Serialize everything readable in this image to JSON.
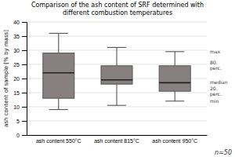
{
  "chart_data": {
    "type": "box",
    "title": "Comparison of the ash content of SRF determined with\ndifferent combustion temperatures",
    "ylabel": "ash content of sample [% by mass]",
    "categories": [
      "ash content 550°C",
      "ash content 815°C",
      "ash content 950°C"
    ],
    "boxes": [
      {
        "min": 9.0,
        "q1": 13.0,
        "median": 22.0,
        "q3": 29.0,
        "max": 36.0
      },
      {
        "min": 10.5,
        "q1": 18.0,
        "median": 19.5,
        "q3": 24.5,
        "max": 31.0
      },
      {
        "min": 12.0,
        "q1": 15.5,
        "median": 18.5,
        "q3": 24.5,
        "max": 29.5
      }
    ],
    "color": "#888080",
    "ylim": [
      0,
      40
    ],
    "yticks": [
      0,
      5,
      10,
      15,
      20,
      25,
      30,
      35,
      40
    ],
    "grid": true,
    "annotations": [
      {
        "text": "max",
        "y": 29.5
      },
      {
        "text": "80.\nperc.",
        "y": 24.5
      },
      {
        "text": "median",
        "y": 18.5
      },
      {
        "text": "20.\nperc.",
        "y": 15.5
      },
      {
        "text": "min",
        "y": 12.0
      },
      {
        "text": "n=50"
      }
    ]
  }
}
